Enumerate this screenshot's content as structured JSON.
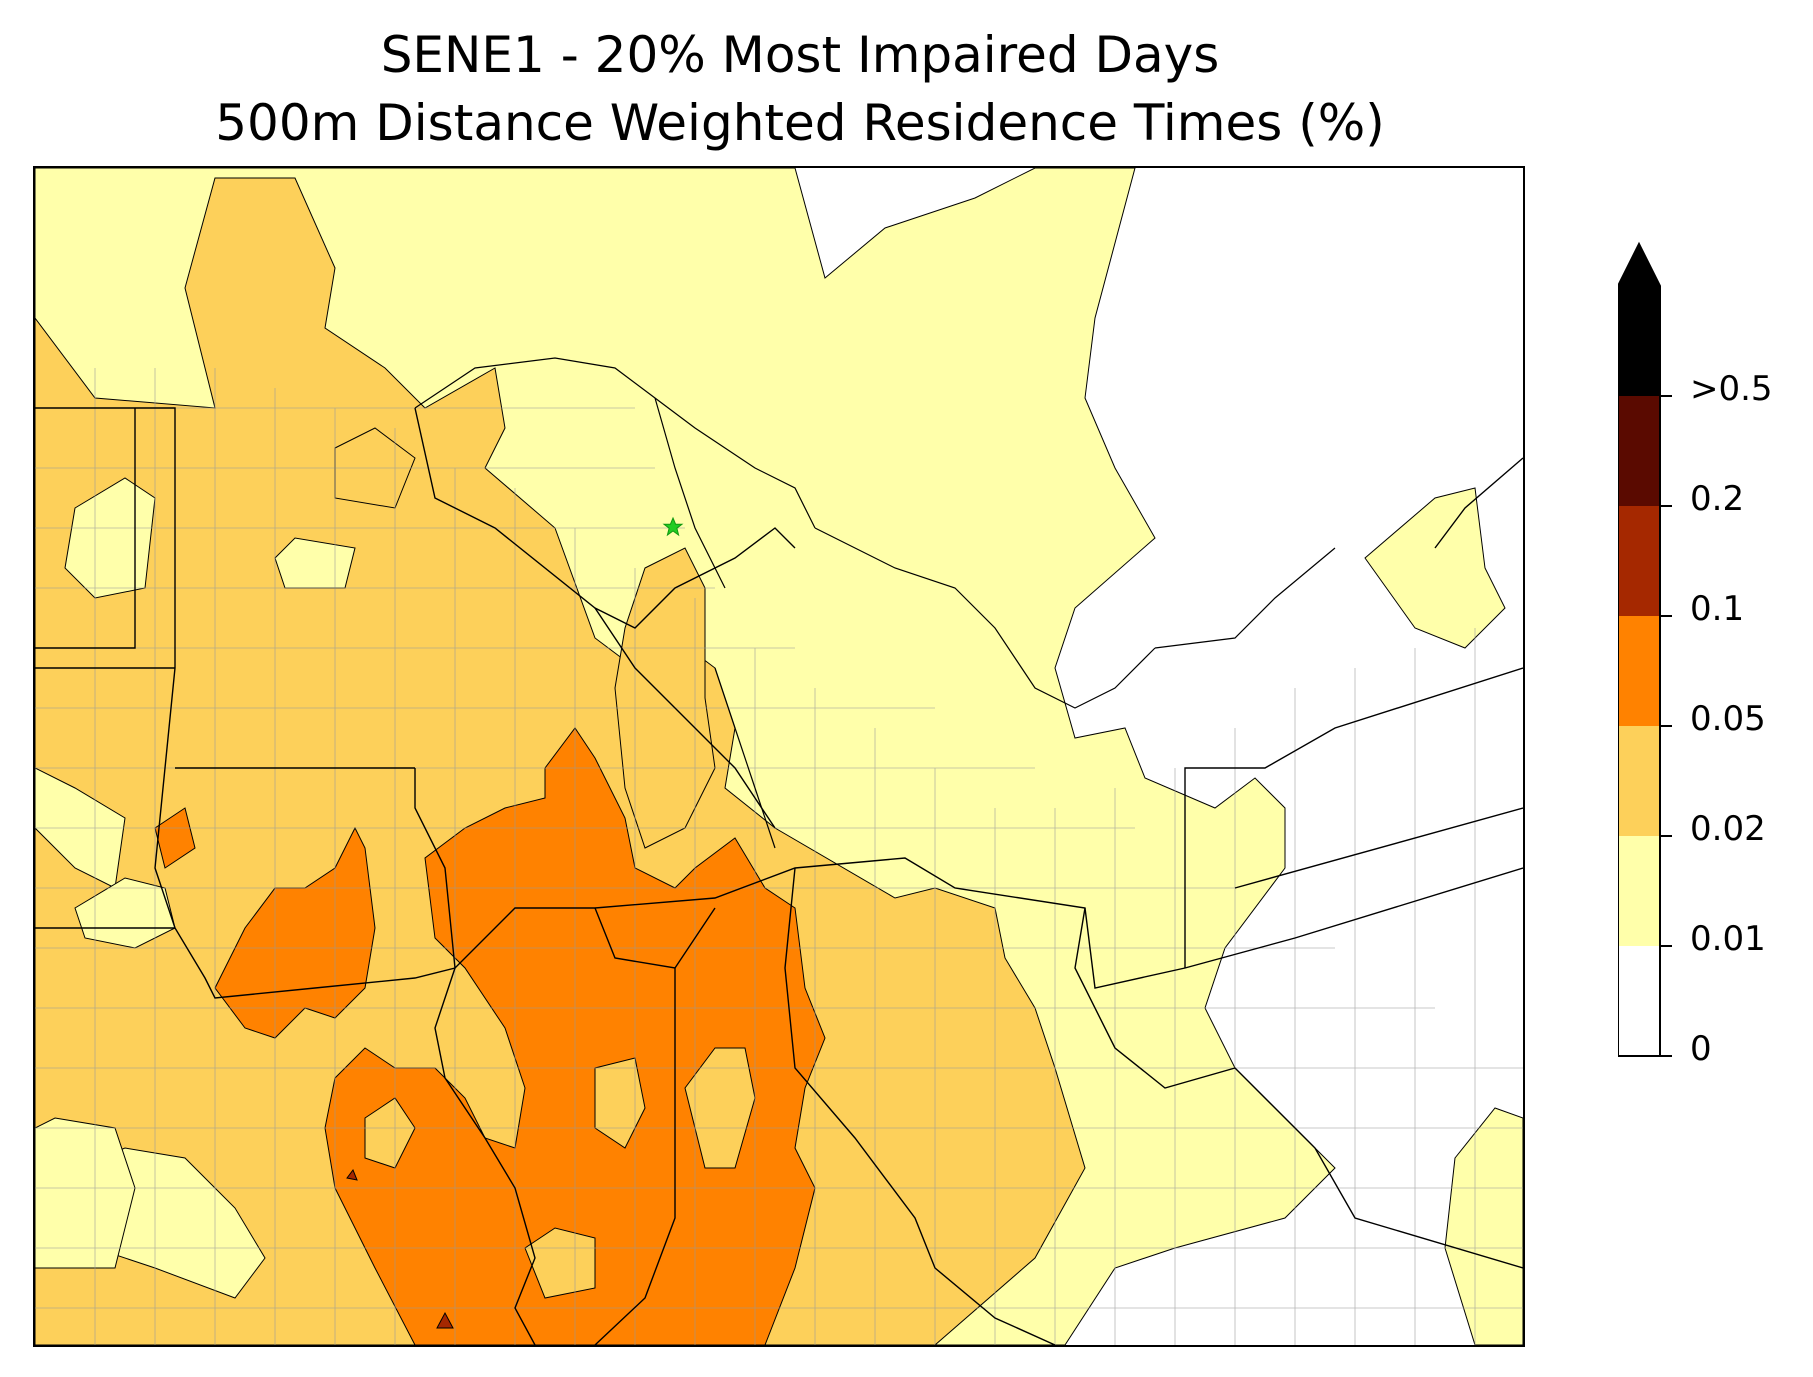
{
  "title": {
    "line1": "SENE1 - 20% Most Impaired Days",
    "line2": "500m Distance Weighted Residence Times (%)"
  },
  "colorbar": {
    "levels": [
      {
        "label": "0",
        "color": "#ffffff"
      },
      {
        "label": "0.01",
        "color": "#ffffaa"
      },
      {
        "label": "0.02",
        "color": "#fdd05a"
      },
      {
        "label": "0.05",
        "color": "#ff8200"
      },
      {
        "label": "0.1",
        "color": "#a52800"
      },
      {
        "label": "0.2",
        "color": "#5a0a00"
      },
      {
        "label": ">0.5",
        "color": "#000000"
      }
    ],
    "extend": "max",
    "extend_color": "#000000"
  },
  "map": {
    "site_marker": {
      "name": "SENE1",
      "symbol": "star",
      "color": "#22cc22"
    },
    "boundary_colors": {
      "state": "#000000",
      "county": "#999999"
    }
  }
}
